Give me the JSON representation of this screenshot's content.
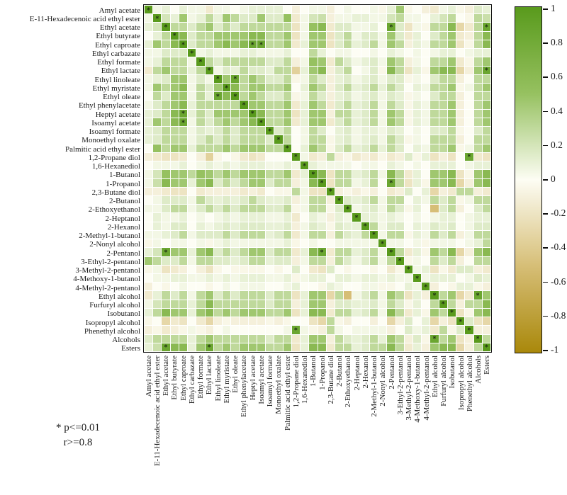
{
  "figure": {
    "kind": "correlation-heatmap",
    "note_line1": "* p<=0.01",
    "note_line2": "r>=0.8"
  },
  "chart_data": {
    "type": "heatmap",
    "title": "",
    "xlabel": "",
    "ylabel": "",
    "legend_position": "right-colorbar",
    "grid": false,
    "star_glyph": "*",
    "labels": [
      "Amyl acetate",
      "E-11-Hexadecenoic acid ethyl ester",
      "Ethyl acetate",
      "Ethyl butyrate",
      "Ethyl caproate",
      "Ethyl carbazate",
      "Ethyl formate",
      "Ethyl lactate",
      "Ethyl linoleate",
      "Ethyl myristate",
      "Ethyl oleate",
      "Ethyl phenylacetate",
      "Heptyl acetate",
      "Isoamyl acetate",
      "Isoamyl formate",
      "Monoethyl oxalate",
      "Palmitic acid ethyl ester",
      "1,2-Propane diol",
      "1,6-Hexanediol",
      "1-Butanol",
      "1-Propanol",
      "2,3-Butane diol",
      "2-Butanol",
      "2-Ethoxyethanol",
      "2-Heptanol",
      "2-Hexanol",
      "2-Methyl-1-butanol",
      "2-Nonyl alcohol",
      "2-Pentanol",
      "3-Ethyl-2-pentanol",
      "3-Methyl-2-pentanol",
      "4-Methoxy-1-butanol",
      "4-Methyl-2-pentanol",
      "Ethyl alcohol",
      "Furfuryl alcohol",
      "Isobutanol",
      "Isopropyl alcohol",
      "Phenethyl alcohol",
      "Alcohols",
      "Esters"
    ],
    "matrix_upper_triangle_note": "row i holds r-values for columns i..39 (symmetric matrix, diagonal = 1)",
    "matrix_upper": [
      [
        1,
        0.05,
        0.1,
        0,
        0.1,
        0.05,
        0.05,
        -0.15,
        0.05,
        0.05,
        0,
        0.05,
        0.1,
        0.1,
        0.1,
        0.1,
        0,
        -0.1,
        0,
        0.05,
        0.05,
        -0.1,
        0,
        0.05,
        0,
        0,
        0.05,
        -0.05,
        0.1,
        0.45,
        -0.05,
        0,
        -0.1,
        -0.15,
        0.05,
        0.1,
        -0.05,
        -0.1,
        0.15,
        0.1
      ],
      [
        1,
        0.2,
        0.1,
        0.45,
        0.05,
        0.1,
        0.3,
        0.1,
        0.45,
        0.3,
        0.15,
        0.15,
        0.45,
        0.15,
        0.15,
        0.5,
        -0.15,
        0.05,
        0.2,
        0.25,
        -0.1,
        0.05,
        0.05,
        0.1,
        0.1,
        0.05,
        0.05,
        0.2,
        0.3,
        0.05,
        0.05,
        0,
        0.1,
        0.2,
        0.3,
        0,
        -0.05,
        0.3,
        0.25
      ],
      [
        1,
        0.3,
        0.3,
        0.15,
        0.3,
        0.45,
        0.15,
        0.3,
        0.15,
        0.3,
        0.3,
        0.3,
        0.3,
        0.3,
        0.3,
        -0.2,
        0.05,
        0.5,
        0.6,
        -0.15,
        0.15,
        0.15,
        0.05,
        0.05,
        0.1,
        0,
        0.85,
        0.15,
        -0.2,
        0.05,
        -0.05,
        0.3,
        0.3,
        0.6,
        -0.3,
        -0.15,
        0.3,
        0.85
      ],
      [
        1,
        0.6,
        0.15,
        0.3,
        0.3,
        0.45,
        0.45,
        0.45,
        0.45,
        0.6,
        0.6,
        0.3,
        0.3,
        0.45,
        -0.2,
        0.05,
        0.45,
        0.45,
        -0.2,
        0.15,
        0.3,
        0.05,
        0.15,
        0.15,
        0.05,
        0.45,
        0.15,
        -0.15,
        0.1,
        0,
        0.15,
        0.3,
        0.45,
        -0.15,
        -0.1,
        0.3,
        0.6
      ],
      [
        1,
        0.15,
        0.3,
        0.3,
        0.45,
        0.6,
        0.45,
        0.6,
        0.85,
        0.85,
        0.3,
        0.3,
        0.45,
        -0.15,
        0.1,
        0.45,
        0.45,
        -0.2,
        0.15,
        0.3,
        0.1,
        0.15,
        0.3,
        0.05,
        0.45,
        0.3,
        -0.1,
        0.1,
        0.05,
        0.3,
        0.3,
        0.45,
        -0.2,
        -0.05,
        0.3,
        0.6
      ],
      [
        1,
        0.05,
        0.1,
        0.05,
        0.05,
        0.05,
        0.1,
        0.1,
        0.05,
        0.05,
        0.05,
        0.1,
        0,
        0,
        0.3,
        0.1,
        0,
        0.05,
        0.05,
        0,
        0,
        0.05,
        0,
        0.1,
        0.05,
        0,
        0.05,
        0,
        0.05,
        0.1,
        0.1,
        0,
        0.05,
        0.1,
        0.1
      ],
      [
        1,
        0.3,
        0.15,
        0.3,
        0.3,
        0.3,
        0.3,
        0.3,
        0.15,
        0.15,
        0.3,
        -0.1,
        0.05,
        0.5,
        0.45,
        -0.15,
        0.3,
        0.15,
        0.05,
        0.1,
        0.15,
        0.05,
        0.45,
        0.3,
        -0.1,
        0.05,
        0,
        0.3,
        0.3,
        0.45,
        -0.15,
        -0.05,
        0.3,
        0.45
      ],
      [
        1,
        0.05,
        0.15,
        0.1,
        0.3,
        0.15,
        0.15,
        0.1,
        0.3,
        0.3,
        -0.35,
        0.1,
        0.45,
        0.6,
        -0.1,
        0.15,
        0.3,
        0,
        0.05,
        0.15,
        -0.05,
        0.6,
        0.3,
        -0.2,
        0.1,
        -0.05,
        0.45,
        0.6,
        0.6,
        -0.3,
        -0.1,
        0.45,
        0.85
      ],
      [
        1,
        0.45,
        0.85,
        0.3,
        0.45,
        0.3,
        0.15,
        0.15,
        0.3,
        -0.05,
        0.05,
        0.3,
        0.15,
        -0.1,
        0.1,
        0.15,
        0.05,
        0.1,
        0.15,
        0.05,
        0.15,
        0.15,
        -0.05,
        0.05,
        0,
        0.15,
        0.3,
        0.3,
        -0.1,
        0,
        0.3,
        0.3
      ],
      [
        1,
        0.6,
        0.3,
        0.45,
        0.45,
        0.3,
        0.3,
        0.45,
        0,
        0.1,
        0.45,
        0.3,
        -0.1,
        0.15,
        0.3,
        0.1,
        0.15,
        0.3,
        0.1,
        0.3,
        0.15,
        0,
        0.1,
        0.05,
        0.3,
        0.3,
        0.45,
        -0.05,
        0.05,
        0.3,
        0.45
      ],
      [
        1,
        0.3,
        0.45,
        0.3,
        0.15,
        0.15,
        0.3,
        -0.05,
        0.05,
        0.3,
        0.15,
        -0.1,
        0.1,
        0.15,
        0.05,
        0.1,
        0.15,
        0.05,
        0.15,
        0.1,
        -0.05,
        0.05,
        0,
        0.15,
        0.3,
        0.3,
        -0.1,
        0,
        0.3,
        0.3
      ],
      [
        1,
        0.45,
        0.45,
        0.3,
        0.3,
        0.45,
        -0.15,
        0.1,
        0.45,
        0.3,
        -0.15,
        0.15,
        0.3,
        0.1,
        0.15,
        0.3,
        0.05,
        0.3,
        0.15,
        -0.05,
        0.1,
        0.05,
        0.3,
        0.3,
        0.45,
        -0.1,
        0,
        0.3,
        0.45
      ],
      [
        1,
        0.6,
        0.3,
        0.3,
        0.45,
        -0.2,
        0.1,
        0.45,
        0.45,
        -0.1,
        0.3,
        0.3,
        0.1,
        0.15,
        0.3,
        0.05,
        0.45,
        0.3,
        -0.05,
        0.1,
        0.05,
        0.3,
        0.3,
        0.45,
        -0.1,
        0,
        0.3,
        0.45
      ],
      [
        1,
        0.3,
        0.3,
        0.45,
        -0.15,
        0.1,
        0.45,
        0.45,
        -0.15,
        0.15,
        0.3,
        0.1,
        0.15,
        0.3,
        0.05,
        0.45,
        0.3,
        -0.05,
        0.1,
        0.05,
        0.3,
        0.3,
        0.45,
        -0.1,
        0,
        0.3,
        0.45
      ],
      [
        1,
        0.15,
        0.3,
        0,
        0.05,
        0.3,
        0.15,
        0,
        0.1,
        0.15,
        0.05,
        0.1,
        0.1,
        0.05,
        0.15,
        0.1,
        0,
        0.05,
        0,
        0.15,
        0.15,
        0.3,
        -0.05,
        0,
        0.15,
        0.3
      ],
      [
        1,
        0.3,
        0,
        0.05,
        0.3,
        0.3,
        -0.05,
        0.1,
        0.15,
        0.05,
        0.1,
        0.15,
        0.05,
        0.3,
        0.15,
        -0.05,
        0.05,
        0,
        0.3,
        0.3,
        0.3,
        -0.1,
        0,
        0.3,
        0.3
      ],
      [
        1,
        0,
        0.1,
        0.45,
        0.3,
        -0.05,
        0.15,
        0.3,
        0.1,
        0.15,
        0.3,
        0.1,
        0.3,
        0.15,
        0,
        0.1,
        0.05,
        0.3,
        0.3,
        0.45,
        -0.05,
        0.05,
        0.3,
        0.45
      ],
      [
        1,
        0.05,
        -0.15,
        -0.1,
        0.3,
        -0.1,
        -0.05,
        -0.15,
        -0.1,
        -0.15,
        -0.05,
        -0.15,
        -0.1,
        0.15,
        -0.05,
        0.1,
        -0.2,
        -0.1,
        -0.2,
        0,
        0.85,
        -0.15,
        -0.2
      ],
      [
        1,
        0.1,
        0.05,
        0.05,
        0.05,
        0.05,
        0,
        0.05,
        0.05,
        0,
        0.1,
        0.05,
        0,
        0.05,
        0,
        0.1,
        0.1,
        0.1,
        0,
        0.05,
        0.1,
        0.1
      ],
      [
        1,
        0.6,
        -0.2,
        0.3,
        0.3,
        0.1,
        0.15,
        0.3,
        0.05,
        0.6,
        0.3,
        -0.15,
        0.1,
        0,
        0.45,
        0.45,
        0.6,
        -0.2,
        -0.05,
        0.45,
        0.6
      ],
      [
        1,
        -0.2,
        0.3,
        0.3,
        0.05,
        0.1,
        0.3,
        0,
        0.85,
        0.3,
        -0.2,
        0.1,
        -0.05,
        0.45,
        0.45,
        0.6,
        -0.3,
        -0.1,
        0.45,
        0.6
      ],
      [
        1,
        -0.1,
        -0.05,
        -0.1,
        -0.05,
        -0.1,
        0,
        -0.15,
        -0.1,
        0.15,
        0,
        0.1,
        -0.3,
        -0.1,
        -0.15,
        0.3,
        0.3,
        -0.1,
        -0.15
      ],
      [
        1,
        0.15,
        0.1,
        0.15,
        0.3,
        0.05,
        0.3,
        0.3,
        0,
        0.1,
        0.05,
        0.3,
        0.15,
        0.3,
        -0.05,
        0.05,
        0.3,
        0.3
      ],
      [
        1,
        0.05,
        0.1,
        0.15,
        0.05,
        0.3,
        0.15,
        -0.05,
        0.1,
        0,
        -0.5,
        0.15,
        0.3,
        -0.1,
        0,
        0.15,
        0.3
      ],
      [
        1,
        0.1,
        0.1,
        0.05,
        0.1,
        0.05,
        0,
        0.05,
        0,
        0.05,
        0.1,
        0.1,
        0,
        0.05,
        0.1,
        0.1
      ],
      [
        1,
        0.3,
        0.05,
        0.15,
        0.15,
        0,
        0.1,
        0.05,
        0.15,
        0.1,
        0.15,
        0,
        0.05,
        0.15,
        0.15
      ],
      [
        1,
        0.05,
        0.3,
        0.3,
        -0.05,
        0.1,
        0.05,
        0.3,
        0.15,
        0.3,
        -0.1,
        0.05,
        0.3,
        0.3
      ],
      [
        1,
        0.05,
        0.05,
        0,
        0.05,
        -0.05,
        0.05,
        0.05,
        0.05,
        0,
        0.05,
        0.1,
        0.3
      ],
      [
        1,
        0.3,
        -0.15,
        0.1,
        -0.05,
        0.45,
        0.3,
        0.6,
        -0.3,
        -0.1,
        0.45,
        0.6
      ],
      [
        1,
        -0.05,
        0.05,
        0,
        0.3,
        0.15,
        0.3,
        -0.1,
        0,
        0.3,
        0.3
      ],
      [
        1,
        0.05,
        0.1,
        -0.2,
        -0.05,
        -0.15,
        0.15,
        0.15,
        -0.1,
        -0.15
      ],
      [
        1,
        0.05,
        0.1,
        0.1,
        0.1,
        0,
        0.05,
        0.15,
        0.1
      ],
      [
        1,
        -0.1,
        0,
        -0.05,
        0.1,
        0.1,
        -0.05,
        -0.1
      ],
      [
        1,
        0.3,
        0.45,
        -0.3,
        -0.15,
        0.85,
        0.45
      ],
      [
        1,
        0.3,
        -0.1,
        0.3,
        0.3,
        0.6
      ],
      [
        1,
        -0.2,
        -0.05,
        0.45,
        0.6
      ],
      [
        1,
        0.15,
        -0.2,
        -0.3
      ],
      [
        1,
        -0.1,
        -0.1
      ],
      [
        1,
        0.3
      ],
      [
        1
      ]
    ],
    "diagonal_significant": true,
    "significant_pairs": [
      [
        2,
        28
      ],
      [
        2,
        39
      ],
      [
        4,
        12
      ],
      [
        4,
        13
      ],
      [
        7,
        39
      ],
      [
        8,
        10
      ],
      [
        17,
        37
      ],
      [
        20,
        28
      ],
      [
        33,
        38
      ]
    ],
    "significance_rule": "* p<=0.01 and r>=0.8",
    "colorbar": {
      "min": -1,
      "max": 1,
      "tick_labels": [
        "1",
        "0.8",
        "0.6",
        "0.4",
        "0.2",
        "0",
        "-0.2",
        "-0.4",
        "-0.6",
        "-0.8",
        "-1"
      ],
      "color_positive": "#599a1c",
      "color_zero": "#fdfdf4",
      "color_negative": "#a9880b"
    }
  }
}
